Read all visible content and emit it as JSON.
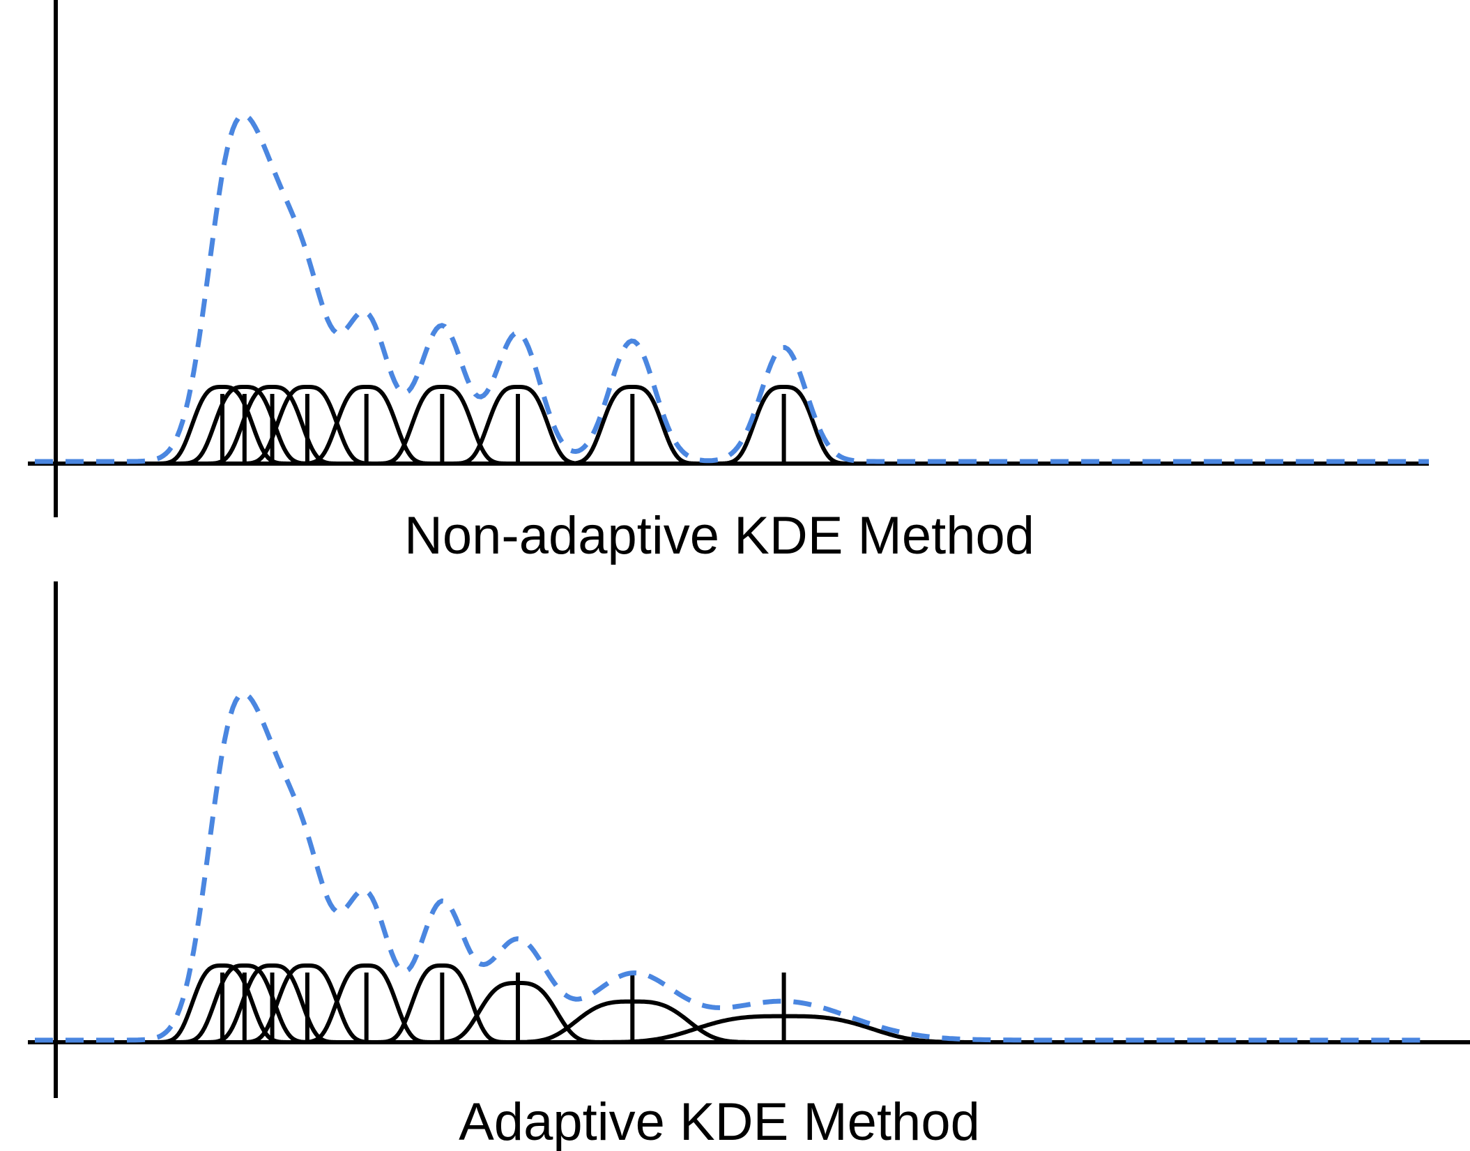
{
  "chart_data": [
    {
      "type": "line",
      "caption": "Non-adaptive KDE Method",
      "adaptive": false,
      "data_points": [
        0,
        0.6,
        1.35,
        2.3,
        3.9,
        5.95,
        8.0,
        11.1,
        15.2
      ],
      "kernel": "gaussian",
      "bandwidths": [
        0.85,
        0.85,
        0.85,
        0.85,
        0.85,
        0.85,
        0.85,
        0.85,
        0.85
      ],
      "colors": {
        "kernels": "#000000",
        "density": "#4a86e0"
      }
    },
    {
      "type": "line",
      "caption": "Adaptive KDE Method",
      "adaptive": true,
      "data_points": [
        0,
        0.6,
        1.35,
        2.3,
        3.9,
        5.95,
        8.0,
        11.1,
        15.2
      ],
      "kernel": "gaussian",
      "bandwidths": [
        0.85,
        0.85,
        0.85,
        0.85,
        0.85,
        0.85,
        1.1,
        1.6,
        2.5
      ],
      "colors": {
        "kernels": "#000000",
        "density": "#4a86e0"
      }
    }
  ]
}
